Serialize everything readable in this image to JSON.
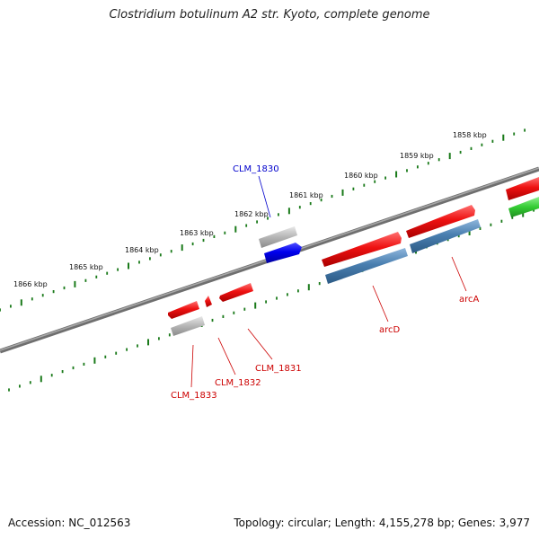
{
  "title": "Clostridium botulinum A2 str. Kyoto, complete genome",
  "footer": {
    "accession": "Accession: NC_012563",
    "summary": "Topology: circular; Length: 4,155,278 bp; Genes: 3,977"
  },
  "kbp_labels": [
    "1858 kbp",
    "1859 kbp",
    "1860 kbp",
    "1861 kbp",
    "1862 kbp",
    "1863 kbp",
    "1864 kbp",
    "1865 kbp",
    "1866 kbp"
  ],
  "genes": [
    {
      "label": "CLM_1830",
      "color": "#0000cc"
    },
    {
      "label": "arcD",
      "color": "#cc0000"
    },
    {
      "label": "arcA",
      "color": "#cc0000"
    },
    {
      "label": "CLM_1831",
      "color": "#cc0000"
    },
    {
      "label": "CLM_1832",
      "color": "#cc0000"
    },
    {
      "label": "CLM_1833",
      "color": "#cc0000"
    }
  ],
  "colors": {
    "backbone": "#777777",
    "tick": "#1a7a1a",
    "red_feature": "#ee1111",
    "blue_feature": "#0000ee",
    "steel_feature": "#4a7fb0",
    "gray_feature": "#b5b5b5",
    "green_feature": "#33cc33"
  }
}
